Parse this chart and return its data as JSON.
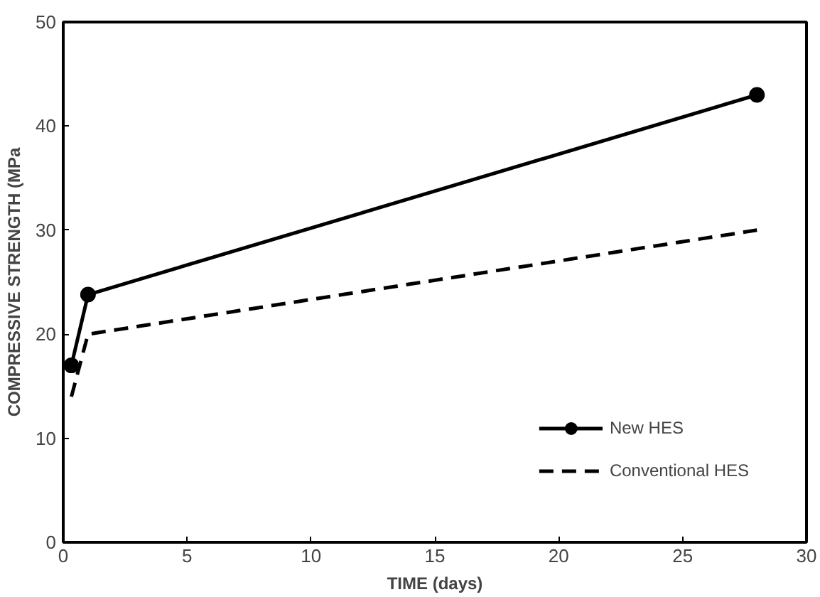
{
  "chart_data": {
    "type": "line",
    "xlabel": "TIME (days)",
    "ylabel": "COMPRESSIVE STRENGTH (MPa",
    "xlim": [
      0,
      30
    ],
    "xticks": [
      0,
      5,
      10,
      15,
      20,
      25,
      30
    ],
    "ylim": [
      0,
      50
    ],
    "yticks": [
      0,
      10,
      20,
      30,
      40,
      50
    ],
    "grid": false,
    "legend": "bottom right",
    "series": [
      {
        "name": "New HES",
        "color": "#000000",
        "x": [
          0.33,
          1,
          28
        ],
        "values": [
          17,
          23.8,
          43
        ],
        "marker": "circle",
        "line_style": "solid"
      },
      {
        "name": "Conventional HES",
        "color": "#000000",
        "x": [
          0.33,
          1,
          28
        ],
        "values": [
          14,
          20,
          30
        ],
        "marker": "none",
        "line_style": "dashed"
      }
    ]
  }
}
